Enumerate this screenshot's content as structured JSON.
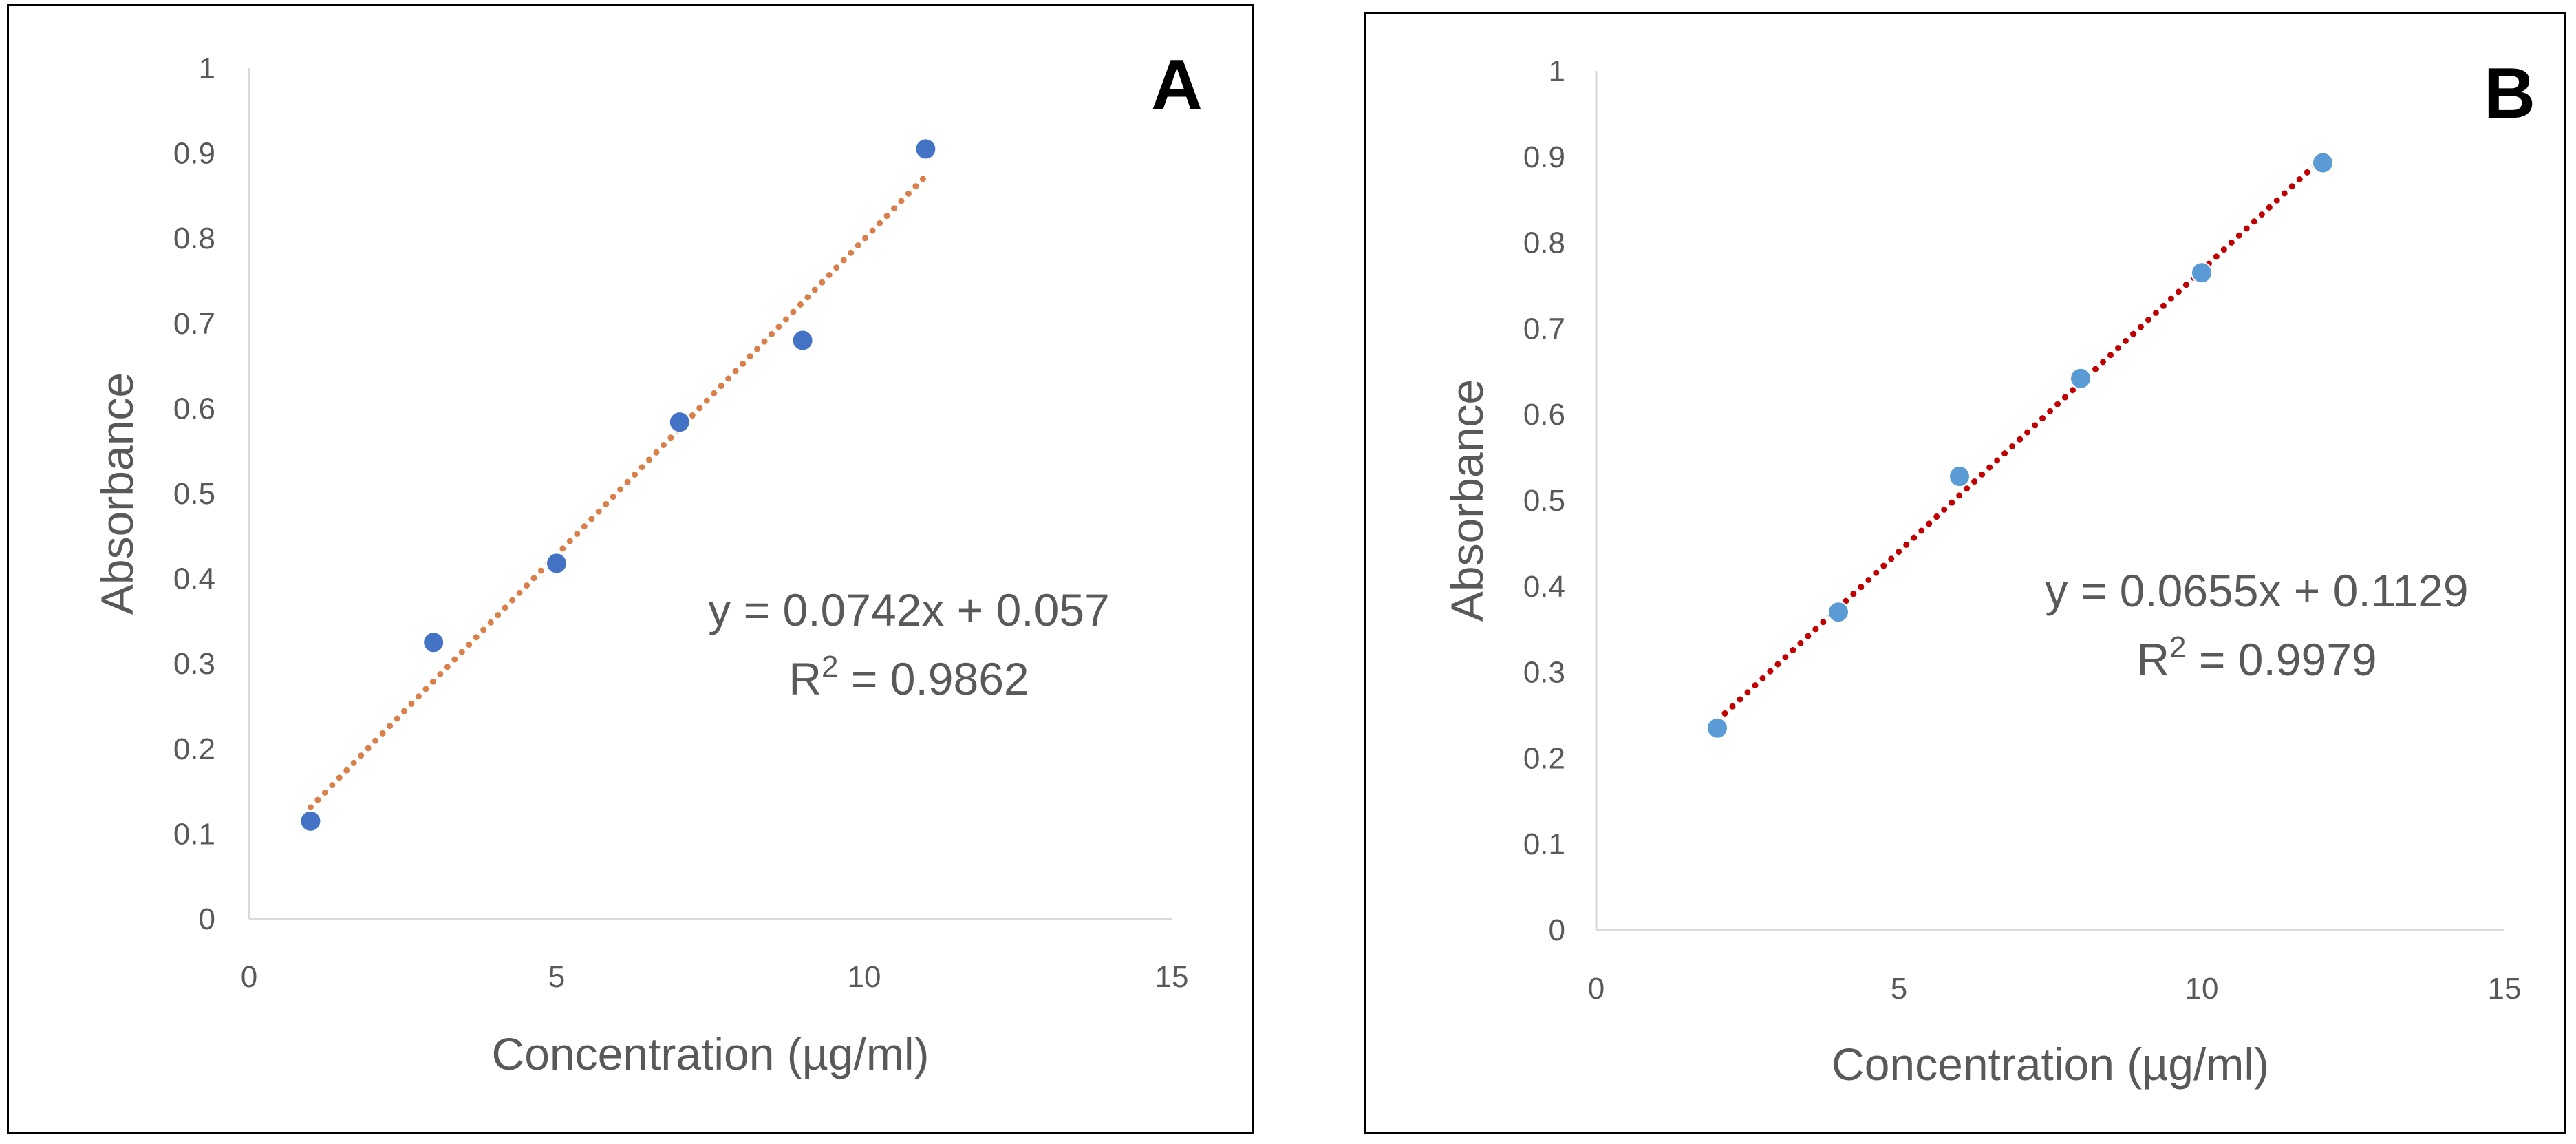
{
  "chart_data": [
    {
      "type": "scatter",
      "panel_label": "A",
      "x": [
        1,
        3,
        5,
        7,
        9,
        11
      ],
      "y": [
        0.115,
        0.325,
        0.418,
        0.584,
        0.68,
        0.905
      ],
      "xlabel": "Concentration (µg/ml)",
      "ylabel": "Absorbance",
      "xlim": [
        0,
        15
      ],
      "ylim": [
        0,
        1
      ],
      "x_ticks": [
        "0",
        "5",
        "10",
        "15"
      ],
      "y_ticks": [
        "0",
        "0.1",
        "0.2",
        "0.3",
        "0.4",
        "0.5",
        "0.6",
        "0.7",
        "0.8",
        "0.9",
        "1"
      ],
      "trendline": {
        "type": "linear",
        "style": "dotted",
        "slope": 0.0742,
        "intercept": 0.057,
        "x_range": [
          1,
          11
        ]
      },
      "equation": "y = 0.0742x + 0.057",
      "r2_prefix": "R",
      "r2_sup": "2",
      "r2_value": " = 0.9862",
      "marker_color": "#4472C4",
      "trend_color": "#D9804A",
      "grid": false,
      "legend": "none"
    },
    {
      "type": "scatter",
      "panel_label": "B",
      "x": [
        2,
        4,
        6,
        8,
        10,
        12
      ],
      "y": [
        0.235,
        0.37,
        0.528,
        0.642,
        0.765,
        0.893
      ],
      "xlabel": "Concentration (µg/ml)",
      "ylabel": "Absorbance",
      "xlim": [
        0,
        15
      ],
      "ylim": [
        0,
        1
      ],
      "x_ticks": [
        "0",
        "5",
        "10",
        "15"
      ],
      "y_ticks": [
        "0",
        "0.1",
        "0.2",
        "0.3",
        "0.4",
        "0.5",
        "0.6",
        "0.7",
        "0.8",
        "0.9",
        "1"
      ],
      "trendline": {
        "type": "linear",
        "style": "dotted",
        "slope": 0.0655,
        "intercept": 0.1129,
        "x_range": [
          2,
          12
        ]
      },
      "equation": "y = 0.0655x + 0.1129",
      "r2_prefix": "R",
      "r2_sup": "2",
      "r2_value": " = 0.9979",
      "marker_color": "#5B9BD5",
      "trend_color": "#C00000",
      "grid": false,
      "legend": "none"
    }
  ]
}
